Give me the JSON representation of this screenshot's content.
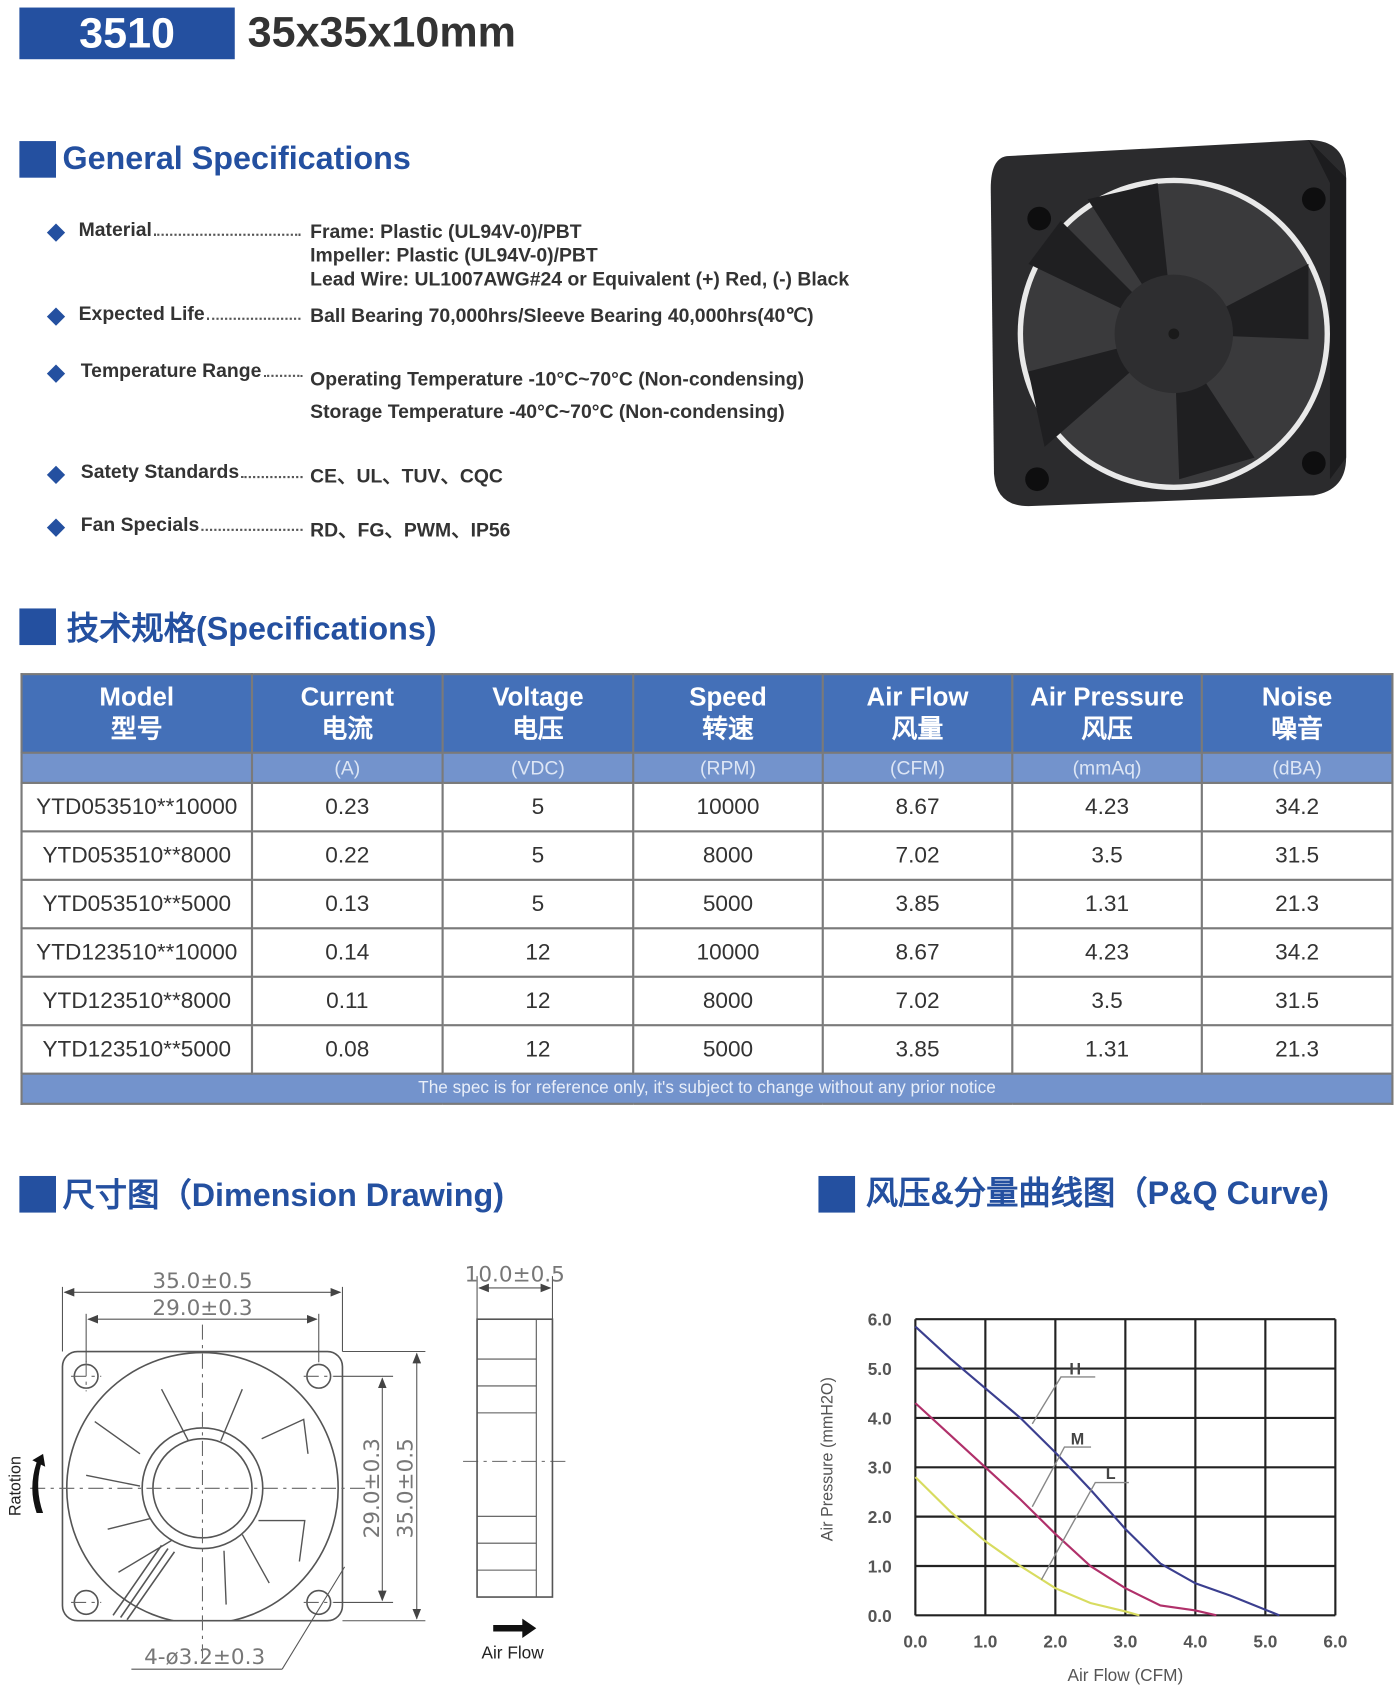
{
  "header": {
    "model": "3510",
    "dimensions": "35x35x10mm"
  },
  "general": {
    "title": "General Specifications",
    "items": [
      {
        "label": "Material",
        "values": [
          "Frame: Plastic (UL94V-0)/PBT",
          "Impeller: Plastic (UL94V-0)/PBT",
          "Lead Wire: UL1007AWG#24 or Equivalent (+) Red, (-) Black"
        ]
      },
      {
        "label": "Expected Life",
        "values": [
          "Ball Bearing 70,000hrs/Sleeve Bearing 40,000hrs(40℃)"
        ]
      },
      {
        "label": "Temperature Range",
        "values": [
          "Operating Temperature -10°C~70°C (Non-condensing)",
          "Storage Temperature -40°C~70°C (Non-condensing)"
        ]
      },
      {
        "label": "Satety Standards",
        "values": [
          "CE、UL、TUV、CQC"
        ]
      },
      {
        "label": "Fan Specials",
        "values": [
          "RD、FG、PWM、IP56"
        ]
      }
    ]
  },
  "specs": {
    "title": "技术规格(Specifications)",
    "columns": [
      {
        "en": "Model",
        "zh": "型号",
        "unit": ""
      },
      {
        "en": "Current",
        "zh": "电流",
        "unit": "(A)"
      },
      {
        "en": "Voltage",
        "zh": "电压",
        "unit": "(VDC)"
      },
      {
        "en": "Speed",
        "zh": "转速",
        "unit": "(RPM)"
      },
      {
        "en": "Air Flow",
        "zh": "风量",
        "unit": "(CFM)"
      },
      {
        "en": "Air Pressure",
        "zh": "风压",
        "unit": "(mmAq)"
      },
      {
        "en": "Noise",
        "zh": "噪音",
        "unit": "(dBA)"
      }
    ],
    "rows": [
      [
        "YTD053510**10000",
        "0.23",
        "5",
        "10000",
        "8.67",
        "4.23",
        "34.2"
      ],
      [
        "YTD053510**8000",
        "0.22",
        "5",
        "8000",
        "7.02",
        "3.5",
        "31.5"
      ],
      [
        "YTD053510**5000",
        "0.13",
        "5",
        "5000",
        "3.85",
        "1.31",
        "21.3"
      ],
      [
        "YTD123510**10000",
        "0.14",
        "12",
        "10000",
        "8.67",
        "4.23",
        "34.2"
      ],
      [
        "YTD123510**8000",
        "0.11",
        "12",
        "8000",
        "7.02",
        "3.5",
        "31.5"
      ],
      [
        "YTD123510**5000",
        "0.08",
        "12",
        "5000",
        "3.85",
        "1.31",
        "21.3"
      ]
    ],
    "note": "The spec is for reference only, it's subject to change without any prior notice"
  },
  "dimension": {
    "title": "尺寸图（Dimension Drawing)",
    "width_outer": "35.0±0.5",
    "width_holes": "29.0±0.3",
    "height_holes": "29.0±0.3",
    "height_outer": "35.0±0.5",
    "depth": "10.0±0.5",
    "holes": "4-ø3.2±0.3",
    "rotation_label": "Ratotion",
    "airflow_label": "Air Flow"
  },
  "pq": {
    "title": "风压&分量曲线图（P&Q Curve)"
  },
  "colors": {
    "brand": "#2450a0",
    "table_header": "#4470b8",
    "table_units": "#7393cc"
  },
  "chart_data": {
    "type": "line",
    "xlabel": "Air Flow (CFM)",
    "ylabel": "Air Pressure (mmH2O)",
    "xlim": [
      0,
      6
    ],
    "ylim": [
      0,
      6
    ],
    "xticks": [
      "0.0",
      "1.0",
      "2.0",
      "3.0",
      "4.0",
      "5.0",
      "6.0"
    ],
    "yticks": [
      "0.0",
      "1.0",
      "2.0",
      "3.0",
      "4.0",
      "5.0",
      "6.0"
    ],
    "grid": true,
    "series": [
      {
        "name": "H",
        "color": "#3b3f8f",
        "points": [
          [
            0,
            5.85
          ],
          [
            0.5,
            5.2
          ],
          [
            1,
            4.6
          ],
          [
            1.5,
            4.0
          ],
          [
            2,
            3.3
          ],
          [
            2.5,
            2.55
          ],
          [
            3,
            1.75
          ],
          [
            3.5,
            1.05
          ],
          [
            4,
            0.65
          ],
          [
            4.5,
            0.4
          ],
          [
            4.85,
            0.2
          ],
          [
            5.2,
            0
          ]
        ]
      },
      {
        "name": "M",
        "color": "#b0306a",
        "points": [
          [
            0,
            4.3
          ],
          [
            0.5,
            3.65
          ],
          [
            1,
            3.0
          ],
          [
            1.5,
            2.35
          ],
          [
            2,
            1.65
          ],
          [
            2.5,
            1.0
          ],
          [
            3,
            0.55
          ],
          [
            3.5,
            0.2
          ],
          [
            4,
            0.1
          ],
          [
            4.3,
            0
          ]
        ]
      },
      {
        "name": "L",
        "color": "#d8dc60",
        "points": [
          [
            0,
            2.8
          ],
          [
            0.5,
            2.1
          ],
          [
            1,
            1.5
          ],
          [
            1.5,
            1.0
          ],
          [
            2,
            0.55
          ],
          [
            2.5,
            0.25
          ],
          [
            3,
            0.08
          ],
          [
            3.2,
            0
          ]
        ]
      }
    ]
  }
}
